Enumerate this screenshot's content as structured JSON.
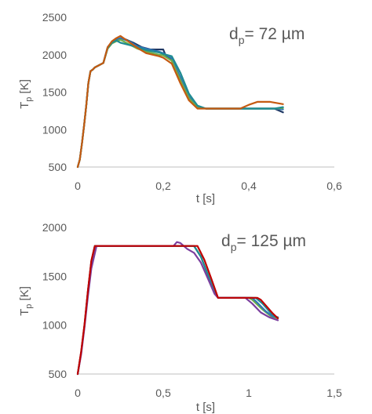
{
  "chart_data": [
    {
      "type": "line",
      "title": "",
      "annotation": {
        "prefix": "d",
        "subscript": "p",
        "suffix": "= 72 µm"
      },
      "xlabel": "t [s]",
      "ylabel": {
        "main": "T",
        "subscript": "p",
        "unit": " [K]"
      },
      "xlim": [
        0,
        0.6
      ],
      "ylim": [
        500,
        2500
      ],
      "xticks": [
        0,
        0.2,
        0.4,
        0.6
      ],
      "xtick_labels": [
        "0",
        "0,2",
        "0,4",
        "0,6"
      ],
      "yticks": [
        500,
        1000,
        1500,
        2000,
        2500
      ],
      "ytick_labels": [
        "500",
        "1000",
        "1500",
        "2000",
        "2500"
      ],
      "grid": false,
      "series": [
        {
          "color": "#1f3864",
          "points": [
            [
              0,
              500
            ],
            [
              0.005,
              600
            ],
            [
              0.01,
              820
            ],
            [
              0.015,
              1060
            ],
            [
              0.02,
              1320
            ],
            [
              0.025,
              1620
            ],
            [
              0.03,
              1780
            ],
            [
              0.035,
              1800
            ],
            [
              0.04,
              1830
            ],
            [
              0.05,
              1860
            ],
            [
              0.06,
              1890
            ],
            [
              0.07,
              2100
            ],
            [
              0.08,
              2170
            ],
            [
              0.09,
              2200
            ],
            [
              0.1,
              2220
            ],
            [
              0.11,
              2210
            ],
            [
              0.13,
              2160
            ],
            [
              0.15,
              2100
            ],
            [
              0.17,
              2070
            ],
            [
              0.2,
              2070
            ],
            [
              0.205,
              2000
            ],
            [
              0.22,
              1920
            ],
            [
              0.24,
              1640
            ],
            [
              0.26,
              1400
            ],
            [
              0.28,
              1290
            ],
            [
              0.3,
              1280
            ],
            [
              0.38,
              1280
            ],
            [
              0.46,
              1280
            ],
            [
              0.48,
              1230
            ]
          ]
        },
        {
          "color": "#2e75b6",
          "points": [
            [
              0,
              500
            ],
            [
              0.005,
              600
            ],
            [
              0.01,
              820
            ],
            [
              0.015,
              1060
            ],
            [
              0.02,
              1320
            ],
            [
              0.025,
              1620
            ],
            [
              0.03,
              1780
            ],
            [
              0.035,
              1800
            ],
            [
              0.04,
              1830
            ],
            [
              0.05,
              1860
            ],
            [
              0.06,
              1890
            ],
            [
              0.07,
              2100
            ],
            [
              0.08,
              2170
            ],
            [
              0.09,
              2200
            ],
            [
              0.1,
              2220
            ],
            [
              0.12,
              2180
            ],
            [
              0.14,
              2110
            ],
            [
              0.16,
              2080
            ],
            [
              0.19,
              2040
            ],
            [
              0.2,
              2020
            ],
            [
              0.22,
              1950
            ],
            [
              0.24,
              1700
            ],
            [
              0.26,
              1440
            ],
            [
              0.28,
              1300
            ],
            [
              0.3,
              1280
            ],
            [
              0.46,
              1280
            ],
            [
              0.48,
              1270
            ]
          ]
        },
        {
          "color": "#70ad47",
          "points": [
            [
              0,
              500
            ],
            [
              0.005,
              600
            ],
            [
              0.01,
              820
            ],
            [
              0.015,
              1060
            ],
            [
              0.02,
              1320
            ],
            [
              0.025,
              1620
            ],
            [
              0.03,
              1780
            ],
            [
              0.035,
              1800
            ],
            [
              0.04,
              1830
            ],
            [
              0.05,
              1860
            ],
            [
              0.06,
              1890
            ],
            [
              0.07,
              2080
            ],
            [
              0.08,
              2150
            ],
            [
              0.09,
              2180
            ],
            [
              0.1,
              2200
            ],
            [
              0.12,
              2140
            ],
            [
              0.14,
              2080
            ],
            [
              0.16,
              2040
            ],
            [
              0.19,
              2000
            ],
            [
              0.2,
              1990
            ],
            [
              0.22,
              1920
            ],
            [
              0.24,
              1660
            ],
            [
              0.26,
              1420
            ],
            [
              0.28,
              1290
            ],
            [
              0.3,
              1280
            ],
            [
              0.46,
              1280
            ],
            [
              0.48,
              1290
            ]
          ]
        },
        {
          "color": "#1f8c91",
          "points": [
            [
              0,
              500
            ],
            [
              0.005,
              600
            ],
            [
              0.01,
              820
            ],
            [
              0.015,
              1060
            ],
            [
              0.02,
              1320
            ],
            [
              0.025,
              1620
            ],
            [
              0.03,
              1780
            ],
            [
              0.035,
              1800
            ],
            [
              0.04,
              1830
            ],
            [
              0.05,
              1860
            ],
            [
              0.06,
              1890
            ],
            [
              0.07,
              2090
            ],
            [
              0.08,
              2160
            ],
            [
              0.09,
              2190
            ],
            [
              0.1,
              2160
            ],
            [
              0.12,
              2130
            ],
            [
              0.14,
              2100
            ],
            [
              0.16,
              2060
            ],
            [
              0.19,
              2030
            ],
            [
              0.2,
              2010
            ],
            [
              0.22,
              1980
            ],
            [
              0.24,
              1760
            ],
            [
              0.26,
              1480
            ],
            [
              0.28,
              1320
            ],
            [
              0.3,
              1280
            ],
            [
              0.46,
              1280
            ],
            [
              0.48,
              1300
            ]
          ]
        },
        {
          "color": "#c55a11",
          "points": [
            [
              0,
              500
            ],
            [
              0.005,
              600
            ],
            [
              0.01,
              820
            ],
            [
              0.015,
              1060
            ],
            [
              0.02,
              1320
            ],
            [
              0.025,
              1620
            ],
            [
              0.03,
              1780
            ],
            [
              0.035,
              1800
            ],
            [
              0.04,
              1830
            ],
            [
              0.05,
              1860
            ],
            [
              0.06,
              1890
            ],
            [
              0.07,
              2100
            ],
            [
              0.08,
              2180
            ],
            [
              0.09,
              2220
            ],
            [
              0.1,
              2250
            ],
            [
              0.12,
              2170
            ],
            [
              0.14,
              2090
            ],
            [
              0.16,
              2020
            ],
            [
              0.19,
              1980
            ],
            [
              0.2,
              1960
            ],
            [
              0.22,
              1880
            ],
            [
              0.24,
              1620
            ],
            [
              0.26,
              1390
            ],
            [
              0.28,
              1280
            ],
            [
              0.3,
              1280
            ],
            [
              0.38,
              1280
            ],
            [
              0.4,
              1330
            ],
            [
              0.42,
              1370
            ],
            [
              0.45,
              1370
            ],
            [
              0.48,
              1340
            ]
          ]
        }
      ]
    },
    {
      "type": "line",
      "title": "",
      "annotation": {
        "prefix": "d",
        "subscript": "p",
        "suffix": "= 125 µm"
      },
      "xlabel": "t [s]",
      "ylabel": {
        "main": "T",
        "subscript": "p",
        "unit": " [K]"
      },
      "xlim": [
        0,
        1.5
      ],
      "ylim": [
        500,
        2000
      ],
      "xticks": [
        0,
        0.5,
        1,
        1.5
      ],
      "xtick_labels": [
        "0",
        "0,5",
        "1",
        "1,5"
      ],
      "yticks": [
        500,
        1000,
        1500,
        2000
      ],
      "ytick_labels": [
        "500",
        "1000",
        "1500",
        "2000"
      ],
      "grid": false,
      "series": [
        {
          "color": "#70ad47",
          "points": [
            [
              0,
              500
            ],
            [
              0.02,
              720
            ],
            [
              0.04,
              1000
            ],
            [
              0.06,
              1350
            ],
            [
              0.08,
              1650
            ],
            [
              0.1,
              1810
            ],
            [
              0.68,
              1810
            ],
            [
              0.72,
              1700
            ],
            [
              0.76,
              1520
            ],
            [
              0.8,
              1330
            ],
            [
              0.82,
              1280
            ],
            [
              1.0,
              1280
            ],
            [
              1.02,
              1260
            ],
            [
              1.08,
              1160
            ],
            [
              1.13,
              1090
            ],
            [
              1.17,
              1070
            ]
          ]
        },
        {
          "color": "#2e75b6",
          "points": [
            [
              0,
              500
            ],
            [
              0.02,
              720
            ],
            [
              0.04,
              1000
            ],
            [
              0.06,
              1350
            ],
            [
              0.08,
              1650
            ],
            [
              0.1,
              1810
            ],
            [
              0.68,
              1810
            ],
            [
              0.72,
              1700
            ],
            [
              0.76,
              1520
            ],
            [
              0.8,
              1330
            ],
            [
              0.82,
              1280
            ],
            [
              1.02,
              1280
            ],
            [
              1.05,
              1230
            ],
            [
              1.1,
              1140
            ],
            [
              1.14,
              1090
            ],
            [
              1.17,
              1080
            ]
          ]
        },
        {
          "color": "#1f8c91",
          "points": [
            [
              0,
              500
            ],
            [
              0.02,
              720
            ],
            [
              0.04,
              1000
            ],
            [
              0.06,
              1350
            ],
            [
              0.08,
              1650
            ],
            [
              0.1,
              1810
            ],
            [
              0.68,
              1810
            ],
            [
              0.72,
              1700
            ],
            [
              0.76,
              1520
            ],
            [
              0.8,
              1330
            ],
            [
              0.82,
              1280
            ],
            [
              1.04,
              1280
            ],
            [
              1.08,
              1220
            ],
            [
              1.12,
              1140
            ],
            [
              1.15,
              1090
            ],
            [
              1.17,
              1080
            ]
          ]
        },
        {
          "color": "#7b3f9e",
          "points": [
            [
              0,
              500
            ],
            [
              0.02,
              700
            ],
            [
              0.04,
              980
            ],
            [
              0.06,
              1300
            ],
            [
              0.08,
              1580
            ],
            [
              0.11,
              1810
            ],
            [
              0.56,
              1810
            ],
            [
              0.58,
              1850
            ],
            [
              0.6,
              1840
            ],
            [
              0.64,
              1780
            ],
            [
              0.68,
              1740
            ],
            [
              0.72,
              1640
            ],
            [
              0.76,
              1480
            ],
            [
              0.8,
              1320
            ],
            [
              0.82,
              1280
            ],
            [
              0.98,
              1280
            ],
            [
              1.02,
              1220
            ],
            [
              1.07,
              1130
            ],
            [
              1.12,
              1080
            ],
            [
              1.17,
              1050
            ]
          ]
        },
        {
          "color": "#c00000",
          "points": [
            [
              0,
              500
            ],
            [
              0.02,
              730
            ],
            [
              0.04,
              1010
            ],
            [
              0.06,
              1360
            ],
            [
              0.08,
              1660
            ],
            [
              0.1,
              1810
            ],
            [
              0.7,
              1810
            ],
            [
              0.74,
              1670
            ],
            [
              0.78,
              1480
            ],
            [
              0.82,
              1280
            ],
            [
              1.05,
              1280
            ],
            [
              1.07,
              1260
            ],
            [
              1.1,
              1200
            ],
            [
              1.14,
              1120
            ],
            [
              1.17,
              1070
            ]
          ]
        }
      ]
    }
  ]
}
